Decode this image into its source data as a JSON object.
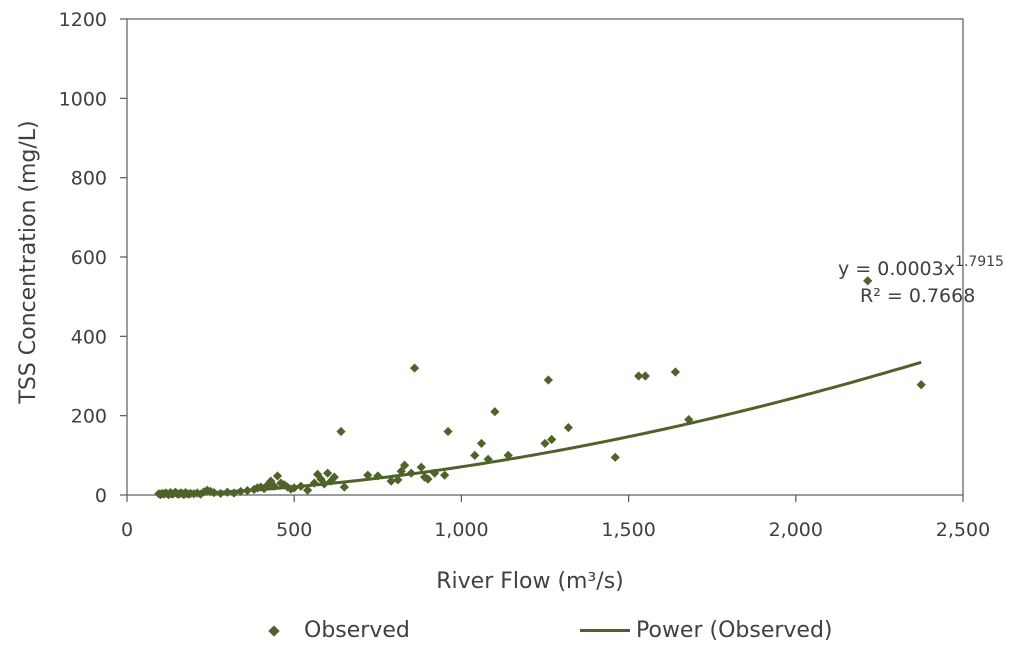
{
  "chart_data": {
    "type": "scatter",
    "xlabel": "River Flow (m³/s)",
    "ylabel": "TSS Concentration (mg/L)",
    "xlim": [
      0,
      2500
    ],
    "ylim": [
      0,
      1200
    ],
    "xticks": [
      0,
      500,
      1000,
      1500,
      2000,
      2500
    ],
    "xtick_labels": [
      "0",
      "500",
      "1,000",
      "1,500",
      "2,000",
      "2,500"
    ],
    "yticks": [
      0,
      200,
      400,
      600,
      800,
      1000,
      1200
    ],
    "ytick_labels": [
      "0",
      "200",
      "400",
      "600",
      "800",
      "1000",
      "1200"
    ],
    "grid": false,
    "legend_position": "bottom",
    "colors": {
      "series": "#4f6228",
      "axis": "#595959",
      "text": "#404040"
    },
    "series": [
      {
        "name": "Observed",
        "kind": "scatter",
        "marker": "diamond",
        "points": [
          [
            95,
            3
          ],
          [
            100,
            1
          ],
          [
            105,
            4
          ],
          [
            110,
            2
          ],
          [
            115,
            5
          ],
          [
            120,
            3
          ],
          [
            125,
            1
          ],
          [
            130,
            6
          ],
          [
            135,
            2
          ],
          [
            140,
            4
          ],
          [
            145,
            7
          ],
          [
            150,
            3
          ],
          [
            155,
            2
          ],
          [
            160,
            5
          ],
          [
            165,
            4
          ],
          [
            170,
            1
          ],
          [
            175,
            6
          ],
          [
            180,
            3
          ],
          [
            185,
            2
          ],
          [
            190,
            4
          ],
          [
            200,
            3
          ],
          [
            210,
            5
          ],
          [
            220,
            2
          ],
          [
            230,
            8
          ],
          [
            240,
            12
          ],
          [
            250,
            9
          ],
          [
            260,
            6
          ],
          [
            280,
            4
          ],
          [
            300,
            7
          ],
          [
            320,
            5
          ],
          [
            340,
            9
          ],
          [
            360,
            11
          ],
          [
            380,
            14
          ],
          [
            390,
            18
          ],
          [
            400,
            20
          ],
          [
            410,
            16
          ],
          [
            420,
            25
          ],
          [
            430,
            35
          ],
          [
            440,
            22
          ],
          [
            450,
            48
          ],
          [
            460,
            30
          ],
          [
            470,
            26
          ],
          [
            480,
            20
          ],
          [
            490,
            15
          ],
          [
            500,
            18
          ],
          [
            520,
            22
          ],
          [
            540,
            12
          ],
          [
            560,
            30
          ],
          [
            570,
            52
          ],
          [
            580,
            40
          ],
          [
            590,
            28
          ],
          [
            600,
            55
          ],
          [
            610,
            35
          ],
          [
            620,
            45
          ],
          [
            640,
            160
          ],
          [
            650,
            20
          ],
          [
            720,
            50
          ],
          [
            750,
            48
          ],
          [
            790,
            35
          ],
          [
            810,
            38
          ],
          [
            820,
            60
          ],
          [
            830,
            75
          ],
          [
            850,
            55
          ],
          [
            860,
            320
          ],
          [
            880,
            70
          ],
          [
            890,
            45
          ],
          [
            900,
            40
          ],
          [
            920,
            55
          ],
          [
            950,
            50
          ],
          [
            960,
            160
          ],
          [
            1040,
            100
          ],
          [
            1060,
            130
          ],
          [
            1080,
            90
          ],
          [
            1100,
            210
          ],
          [
            1140,
            100
          ],
          [
            1250,
            130
          ],
          [
            1260,
            290
          ],
          [
            1270,
            140
          ],
          [
            1320,
            170
          ],
          [
            1460,
            95
          ],
          [
            1530,
            300
          ],
          [
            1550,
            300
          ],
          [
            1640,
            310
          ],
          [
            1680,
            190
          ],
          [
            2215,
            540
          ],
          [
            2375,
            278
          ]
        ]
      },
      {
        "name": "Power (Observed)",
        "kind": "trendline",
        "coefficient": 0.0003,
        "exponent": 1.7915,
        "x_range": [
          100,
          2375
        ]
      }
    ],
    "annotations": {
      "equation_prefix": "y = 0.0003x",
      "equation_exponent": "1.7915",
      "r2_text": "R² = 0.7668"
    }
  },
  "legend": {
    "observed_label": "Observed",
    "power_label": "Power (Observed)"
  }
}
